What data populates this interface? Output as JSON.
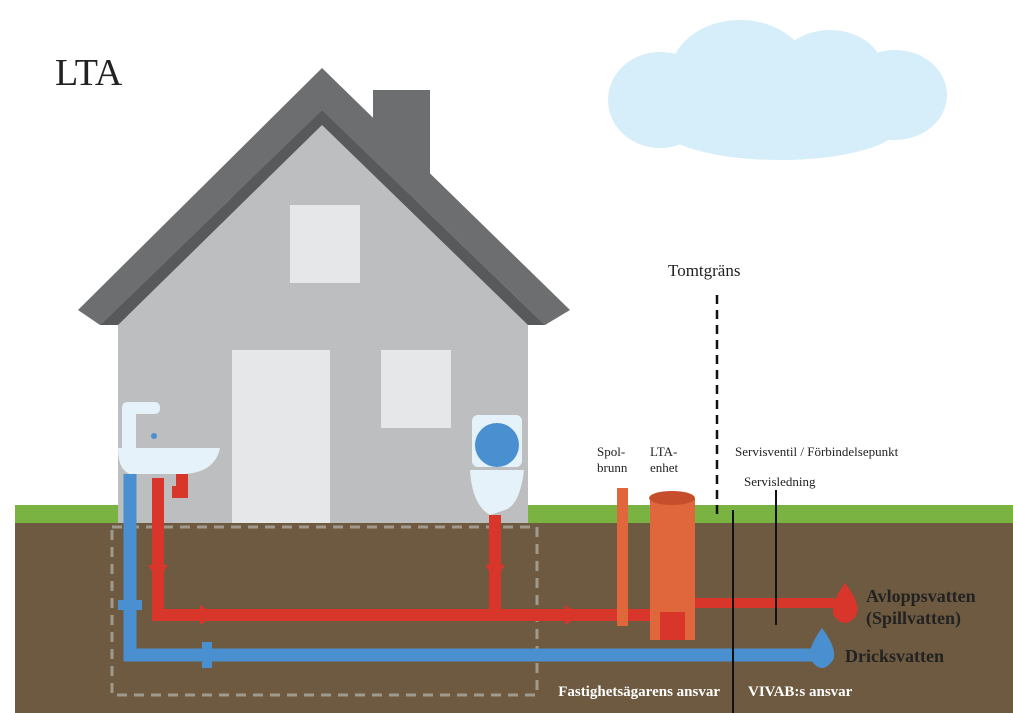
{
  "title": "LTA",
  "labels": {
    "tomtgrans": "Tomtgräns",
    "spolbrunn": [
      "Spol-",
      "brunn"
    ],
    "lta_enhet": [
      "LTA-",
      "enhet"
    ],
    "servisventil": "Servisventil / Förbindelsepunkt",
    "servisledning": "Servisledning",
    "avloppsvatten": [
      "Avloppsvatten",
      "(Spillvatten)"
    ],
    "dricksvatten": "Dricksvatten",
    "fastighetsagarens_ansvar": "Fastighetsägarens ansvar",
    "vivab_ansvar": "VIVAB:s ansvar"
  }
}
